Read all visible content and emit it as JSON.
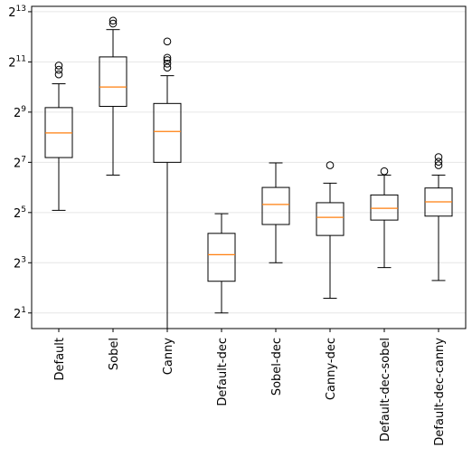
{
  "chart_data": {
    "type": "box",
    "title": "",
    "xlabel": "",
    "ylabel": "",
    "y_scale": "log2",
    "ylim": [
      1.3,
      9500
    ],
    "y_ticks": [
      {
        "base": "2",
        "exp": "1",
        "value": 2
      },
      {
        "base": "2",
        "exp": "3",
        "value": 8
      },
      {
        "base": "2",
        "exp": "5",
        "value": 32
      },
      {
        "base": "2",
        "exp": "7",
        "value": 128
      },
      {
        "base": "2",
        "exp": "9",
        "value": 512
      },
      {
        "base": "2",
        "exp": "11",
        "value": 2048
      },
      {
        "base": "2",
        "exp": "13",
        "value": 8192
      }
    ],
    "grid": "horizontal",
    "colors": {
      "box": "#000000",
      "median": "#ff7f0e",
      "grid": "#e6e6e6"
    },
    "categories": [
      "Default",
      "Sobel",
      "Canny",
      "Default-dec",
      "Sobel-dec",
      "Canny-dec",
      "Default-dec-sobel",
      "Default-dec-canny"
    ],
    "boxes": [
      {
        "whisker_low": 34,
        "q1": 146,
        "median": 288,
        "q3": 580,
        "whisker_high": 1120,
        "outliers": [
          1450,
          1650,
          1850
        ]
      },
      {
        "whisker_low": 90,
        "q1": 600,
        "median": 1024,
        "q3": 2350,
        "whisker_high": 5000,
        "outliers": [
          5900,
          6400
        ]
      },
      {
        "whisker_low": 1.3,
        "q1": 128,
        "median": 300,
        "q3": 650,
        "whisker_high": 1400,
        "outliers": [
          1750,
          1950,
          2150,
          2300,
          3600
        ]
      },
      {
        "whisker_low": 2,
        "q1": 4.8,
        "median": 10,
        "q3": 18,
        "whisker_high": 31,
        "outliers": []
      },
      {
        "whisker_low": 8,
        "q1": 23,
        "median": 40,
        "q3": 64,
        "whisker_high": 126,
        "outliers": []
      },
      {
        "whisker_low": 3,
        "q1": 17,
        "median": 28,
        "q3": 42,
        "whisker_high": 72,
        "outliers": [
          118
        ]
      },
      {
        "whisker_low": 7,
        "q1": 26,
        "median": 36,
        "q3": 52,
        "whisker_high": 90,
        "outliers": [
          100
        ]
      },
      {
        "whisker_low": 4.9,
        "q1": 29,
        "median": 43,
        "q3": 63,
        "whisker_high": 90,
        "outliers": [
          118,
          130,
          148
        ]
      }
    ]
  }
}
